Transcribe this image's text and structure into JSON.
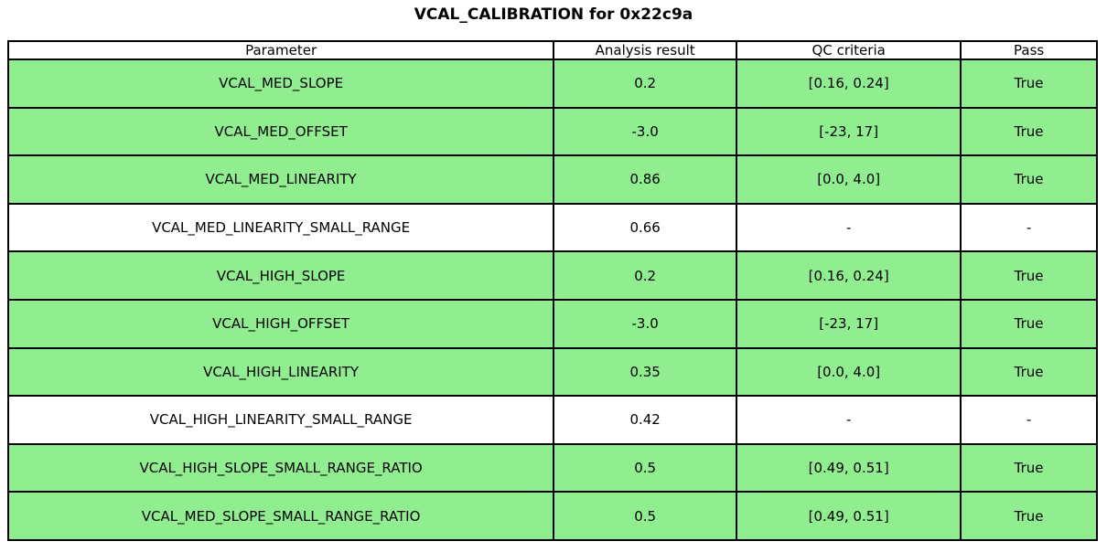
{
  "chart_data": {
    "type": "table",
    "title": "VCAL_CALIBRATION for 0x22c9a",
    "columns": [
      "Parameter",
      "Analysis result",
      "QC criteria",
      "Pass"
    ],
    "rows": [
      [
        "VCAL_MED_SLOPE",
        "0.2",
        "[0.16, 0.24]",
        "True"
      ],
      [
        "VCAL_MED_OFFSET",
        "-3.0",
        "[-23, 17]",
        "True"
      ],
      [
        "VCAL_MED_LINEARITY",
        "0.86",
        "[0.0, 4.0]",
        "True"
      ],
      [
        "VCAL_MED_LINEARITY_SMALL_RANGE",
        "0.66",
        "-",
        "-"
      ],
      [
        "VCAL_HIGH_SLOPE",
        "0.2",
        "[0.16, 0.24]",
        "True"
      ],
      [
        "VCAL_HIGH_OFFSET",
        "-3.0",
        "[-23, 17]",
        "True"
      ],
      [
        "VCAL_HIGH_LINEARITY",
        "0.35",
        "[0.0, 4.0]",
        "True"
      ],
      [
        "VCAL_HIGH_LINEARITY_SMALL_RANGE",
        "0.42",
        "-",
        "-"
      ],
      [
        "VCAL_HIGH_SLOPE_SMALL_RANGE_RATIO",
        "0.5",
        "[0.49, 0.51]",
        "True"
      ],
      [
        "VCAL_MED_SLOPE_SMALL_RANGE_RATIO",
        "0.5",
        "[0.49, 0.51]",
        "True"
      ]
    ],
    "row_highlight": [
      true,
      true,
      true,
      false,
      true,
      true,
      true,
      false,
      true,
      true
    ],
    "highlight_color": "#90EE90",
    "plain_row_color": "#ffffff",
    "border_color": "#000000",
    "legend_position": "none",
    "grid": "full-cell-borders"
  }
}
